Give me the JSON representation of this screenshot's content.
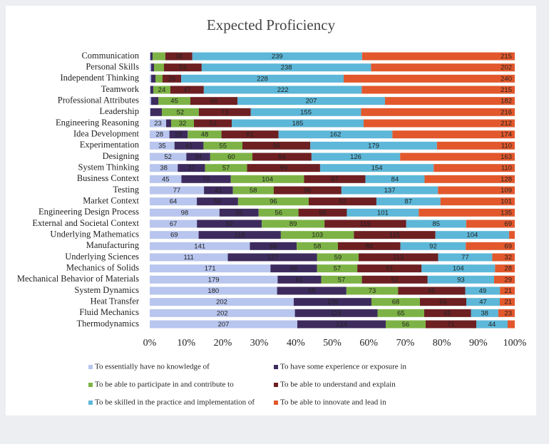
{
  "chart_data": {
    "type": "bar",
    "orientation": "horizontal",
    "stacked": "percent",
    "title": "Expected Proficiency",
    "categories": [
      "Communication",
      "Personal Skills",
      "Independent Thinking",
      "Teamwork",
      "Professional Attributes",
      "Leadership",
      "Engineering Reasoning",
      "Idea Development",
      "Experimentation",
      "Designing",
      "System Thinking",
      "Business Context",
      "Testing",
      "Market Context",
      "Engineering Design Process",
      "External and Societal Context",
      "Underlying Mathematics",
      "Manufacturing",
      "Underlying Sciences",
      "Mechanics of Solids",
      "Mechanical Behavior of Materials",
      "System Dynamics",
      "Heat Transfer",
      "Fluid Mechanics",
      "Thermodynamics"
    ],
    "series": [
      {
        "name": "To essentially have no knowledge of",
        "color": "#b8c5ee",
        "values": [
          1,
          2,
          2,
          1,
          2,
          1,
          23,
          28,
          35,
          52,
          38,
          45,
          77,
          64,
          98,
          67,
          69,
          141,
          111,
          171,
          179,
          180,
          202,
          202,
          207
        ]
      },
      {
        "name": "To have some experience or exposure in",
        "color": "#3e2b5e",
        "values": [
          3,
          4,
          6,
          4,
          10,
          16,
          7,
          26,
          41,
          34,
          37,
          70,
          41,
          56,
          55,
          92,
          116,
          66,
          127,
          66,
          61,
          98,
          109,
          115,
          124
        ]
      },
      {
        "name": "To be able to participate in and contribute to",
        "color": "#7db346",
        "values": [
          18,
          14,
          10,
          24,
          45,
          52,
          32,
          48,
          55,
          60,
          57,
          104,
          58,
          96,
          56,
          89,
          103,
          58,
          59,
          57,
          57,
          73,
          68,
          65,
          56
        ]
      },
      {
        "name": "To be able to understand and explain",
        "color": "#6e1f22",
        "values": [
          38,
          53,
          26,
          47,
          66,
          73,
          53,
          81,
          96,
          84,
          99,
          87,
          96,
          92,
          68,
          116,
          115,
          88,
          113,
          91,
          92,
          95,
          65,
          65,
          71
        ]
      },
      {
        "name": "To be skilled in the practice and implementation of",
        "color": "#5db7d8",
        "values": [
          239,
          238,
          228,
          222,
          207,
          155,
          185,
          162,
          179,
          126,
          154,
          84,
          137,
          87,
          101,
          85,
          104,
          92,
          77,
          104,
          93,
          49,
          47,
          38,
          44
        ]
      },
      {
        "name": "To be able to innovate and lead in",
        "color": "#e2582c",
        "values": [
          215,
          202,
          240,
          215,
          182,
          216,
          212,
          174,
          110,
          163,
          110,
          128,
          109,
          101,
          135,
          69,
          8,
          69,
          32,
          28,
          29,
          21,
          21,
          23,
          10
        ]
      }
    ],
    "xlim": [
      0,
      100
    ],
    "xticks": [
      {
        "value": 0,
        "label": "0%"
      },
      {
        "value": 10,
        "label": "10%"
      },
      {
        "value": 20,
        "label": "20%"
      },
      {
        "value": 30,
        "label": "30%"
      },
      {
        "value": 40,
        "label": "40%"
      },
      {
        "value": 50,
        "label": "50%"
      },
      {
        "value": 60,
        "label": "60%"
      },
      {
        "value": 70,
        "label": "70%"
      },
      {
        "value": 80,
        "label": "80%"
      },
      {
        "value": 90,
        "label": "90%"
      },
      {
        "value": 100,
        "label": "100%"
      }
    ],
    "grid": false
  }
}
